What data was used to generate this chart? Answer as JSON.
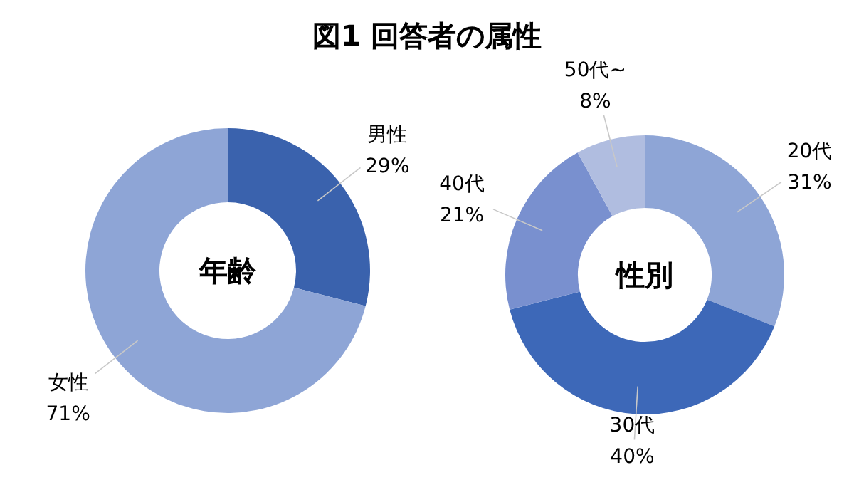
{
  "chart_data": [
    {
      "type": "donut",
      "title": "図1 回答者の属性",
      "categories": [
        "男性",
        "女性"
      ],
      "values": [
        29,
        71
      ],
      "value_labels": [
        "29%",
        "71%"
      ],
      "colors": [
        "#3a62ad",
        "#8ea5d6"
      ],
      "annotations": [
        "年齢"
      ]
    },
    {
      "type": "donut",
      "categories": [
        "20代",
        "30代",
        "40代",
        "50代~"
      ],
      "values": [
        31,
        40,
        21,
        8
      ],
      "value_labels": [
        "31%",
        "40%",
        "21%",
        "8%"
      ],
      "colors": [
        "#8ea5d6",
        "#3d68b8",
        "#7990cf",
        "#b0bde0"
      ],
      "annotations": [
        "性別"
      ]
    }
  ]
}
